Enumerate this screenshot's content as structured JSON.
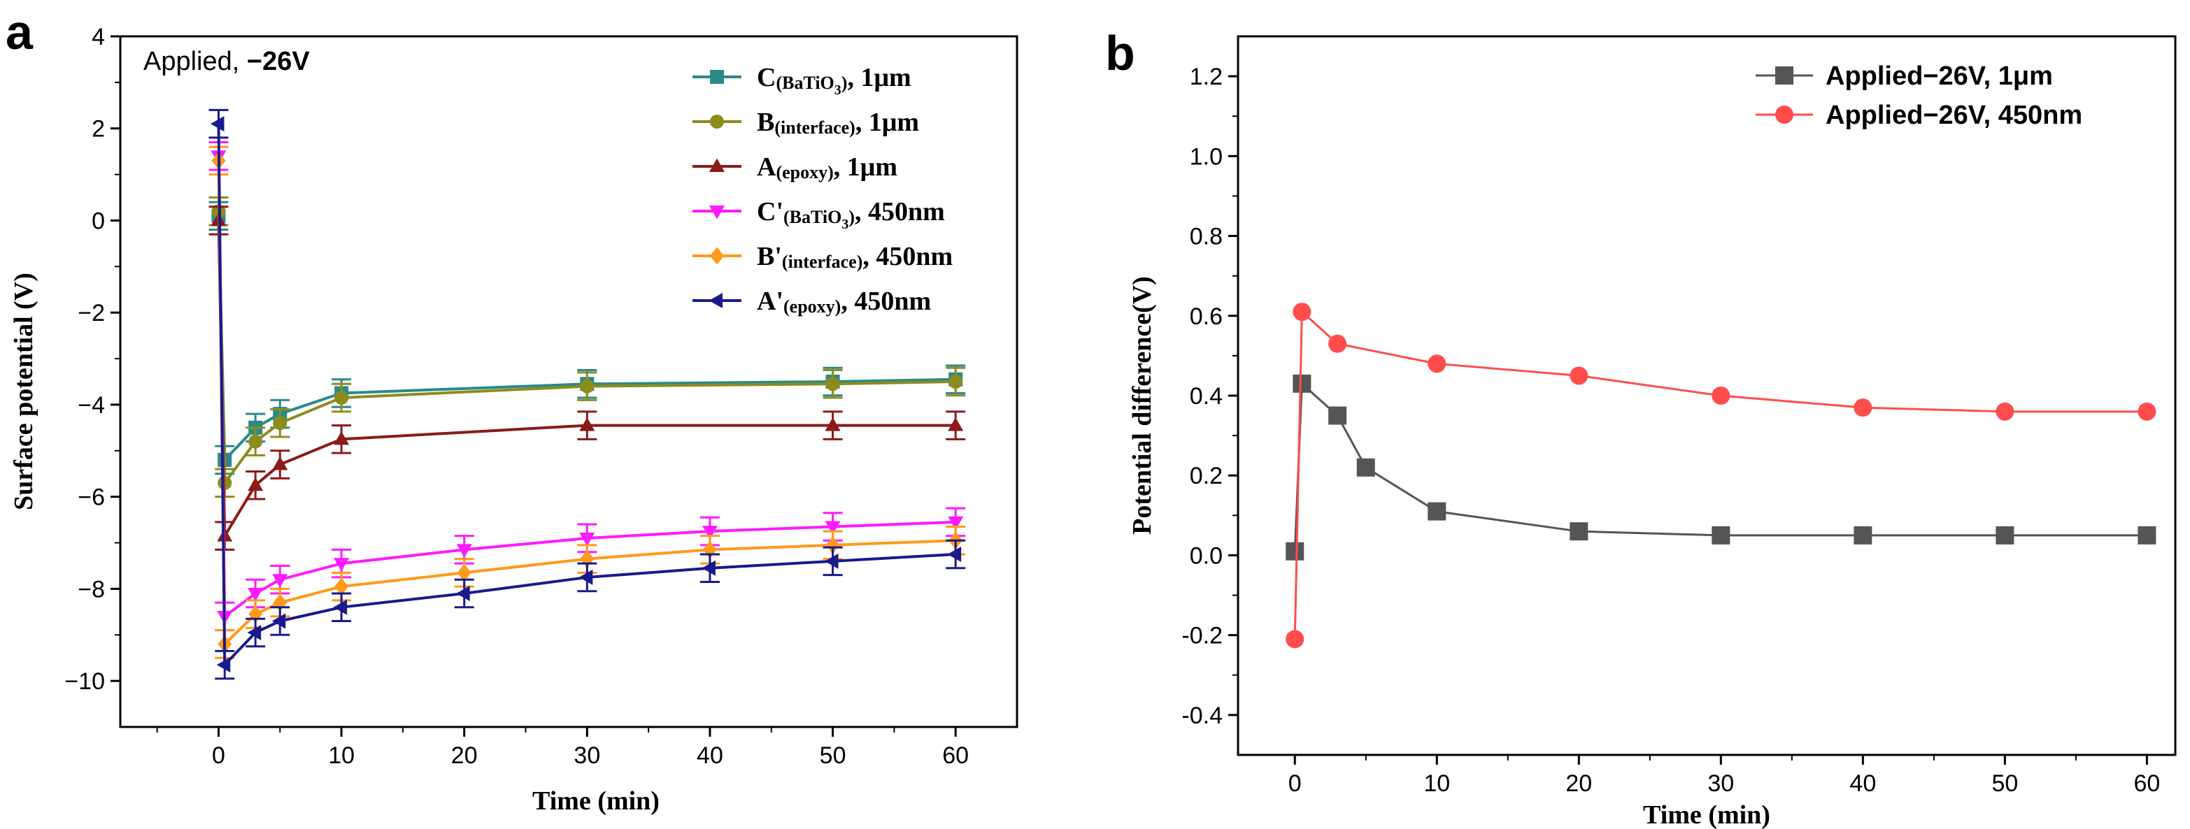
{
  "chart_data": [
    {
      "panel": "a",
      "type": "line",
      "annotation_prefix": "Applied, ",
      "annotation_bold": "−26V",
      "xlabel": "Time (min)",
      "ylabel": "Surface potential (V)",
      "xlim": [
        -8,
        65
      ],
      "ylim": [
        -11,
        4
      ],
      "xticks": [
        0,
        10,
        20,
        30,
        40,
        50,
        60
      ],
      "xtick_labels": [
        "0",
        "10",
        "20",
        "30",
        "40",
        "50",
        "60"
      ],
      "yticks": [
        -10,
        -8,
        -6,
        -4,
        -2,
        0,
        2,
        4
      ],
      "ytick_labels": [
        "−10",
        "−8",
        "−6",
        "−4",
        "−2",
        "0",
        "2",
        "4"
      ],
      "legend_position": "top-right",
      "series": [
        {
          "name": "C(BaTiO3), 1μm",
          "legend_main": "C",
          "legend_sub": "(BaTiO",
          "legend_subsub": "3",
          "legend_close": ")",
          "legend_suffix": ", 1μm",
          "color": "#2a8a8a",
          "marker": "square",
          "x": [
            0,
            0.5,
            3,
            5,
            10,
            30,
            50,
            60
          ],
          "y": [
            0.1,
            -5.2,
            -4.5,
            -4.2,
            -3.75,
            -3.55,
            -3.5,
            -3.45
          ],
          "err": [
            0.3,
            0.3,
            0.3,
            0.3,
            0.3,
            0.3,
            0.3,
            0.3
          ]
        },
        {
          "name": "B(interface), 1μm",
          "legend_main": "B",
          "legend_sub": "(interface)",
          "legend_subsub": "",
          "legend_close": "",
          "legend_suffix": ", 1μm",
          "color": "#8c8c1e",
          "marker": "circle",
          "x": [
            0,
            0.5,
            3,
            5,
            10,
            30,
            50,
            60
          ],
          "y": [
            0.2,
            -5.7,
            -4.8,
            -4.4,
            -3.85,
            -3.6,
            -3.55,
            -3.5
          ],
          "err": [
            0.3,
            0.3,
            0.3,
            0.3,
            0.3,
            0.3,
            0.3,
            0.3
          ]
        },
        {
          "name": "A(epoxy), 1μm",
          "legend_main": "A",
          "legend_sub": "(epoxy)",
          "legend_subsub": "",
          "legend_close": "",
          "legend_suffix": ", 1μm",
          "color": "#8b1a1a",
          "marker": "triangle-up",
          "x": [
            0,
            0.5,
            3,
            5,
            10,
            30,
            50,
            60
          ],
          "y": [
            0.0,
            -6.85,
            -5.75,
            -5.3,
            -4.75,
            -4.45,
            -4.45,
            -4.45
          ],
          "err": [
            0.3,
            0.3,
            0.3,
            0.3,
            0.3,
            0.3,
            0.3,
            0.3
          ]
        },
        {
          "name": "C'(BaTiO3), 450nm",
          "legend_main": "C'",
          "legend_sub": "(BaTiO",
          "legend_subsub": "3",
          "legend_close": ")",
          "legend_suffix": ", 450nm",
          "color": "#ff1aff",
          "marker": "triangle-down",
          "x": [
            0,
            0.5,
            3,
            5,
            10,
            20,
            30,
            40,
            50,
            60
          ],
          "y": [
            1.4,
            -8.6,
            -8.1,
            -7.8,
            -7.45,
            -7.15,
            -6.9,
            -6.75,
            -6.65,
            -6.55
          ],
          "err": [
            0.3,
            0.3,
            0.3,
            0.3,
            0.3,
            0.3,
            0.3,
            0.3,
            0.3,
            0.3
          ]
        },
        {
          "name": "B'(interface), 450nm",
          "legend_main": "B'",
          "legend_sub": "(interface)",
          "legend_subsub": "",
          "legend_close": "",
          "legend_suffix": ", 450nm",
          "color": "#ff9a1a",
          "marker": "diamond",
          "x": [
            0,
            0.5,
            3,
            5,
            10,
            20,
            30,
            40,
            50,
            60
          ],
          "y": [
            1.3,
            -9.2,
            -8.55,
            -8.3,
            -7.95,
            -7.65,
            -7.35,
            -7.15,
            -7.05,
            -6.95
          ],
          "err": [
            0.3,
            0.3,
            0.3,
            0.3,
            0.3,
            0.3,
            0.3,
            0.3,
            0.3,
            0.3
          ]
        },
        {
          "name": "A'(epoxy), 450nm",
          "legend_main": "A'",
          "legend_sub": "(epoxy)",
          "legend_subsub": "",
          "legend_close": "",
          "legend_suffix": ", 450nm",
          "color": "#1a1a8c",
          "marker": "triangle-left",
          "x": [
            0,
            0.5,
            3,
            5,
            10,
            20,
            30,
            40,
            50,
            60
          ],
          "y": [
            2.1,
            -9.65,
            -8.95,
            -8.7,
            -8.4,
            -8.1,
            -7.75,
            -7.55,
            -7.4,
            -7.25
          ],
          "err": [
            0.3,
            0.3,
            0.3,
            0.3,
            0.3,
            0.3,
            0.3,
            0.3,
            0.3,
            0.3
          ]
        }
      ]
    },
    {
      "panel": "b",
      "type": "line",
      "xlabel": "Time (min)",
      "ylabel": "Potential difference(V)",
      "xlim": [
        -4,
        62
      ],
      "ylim": [
        -0.5,
        1.3
      ],
      "xticks": [
        0,
        10,
        20,
        30,
        40,
        50,
        60
      ],
      "xtick_labels": [
        "0",
        "10",
        "20",
        "30",
        "40",
        "50",
        "60"
      ],
      "yticks": [
        -0.4,
        -0.2,
        0.0,
        0.2,
        0.4,
        0.6,
        0.8,
        1.0,
        1.2
      ],
      "ytick_labels": [
        "-0.4",
        "-0.2",
        "0.0",
        "0.2",
        "0.4",
        "0.6",
        "0.8",
        "1.0",
        "1.2"
      ],
      "legend_position": "top-right",
      "series": [
        {
          "name": "Applied−26V, 1μm",
          "color": "#555555",
          "marker": "square",
          "x": [
            0,
            0.5,
            3,
            5,
            10,
            20,
            30,
            40,
            50,
            60
          ],
          "y": [
            0.01,
            0.43,
            0.35,
            0.22,
            0.11,
            0.06,
            0.05,
            0.05,
            0.05,
            0.05
          ]
        },
        {
          "name": "Applied−26V, 450nm",
          "color": "#ff4d4d",
          "marker": "circle",
          "x": [
            0,
            0.5,
            3,
            10,
            20,
            30,
            40,
            50,
            60
          ],
          "y": [
            -0.21,
            0.61,
            0.53,
            0.48,
            0.45,
            0.4,
            0.37,
            0.36,
            0.36
          ]
        }
      ]
    }
  ]
}
